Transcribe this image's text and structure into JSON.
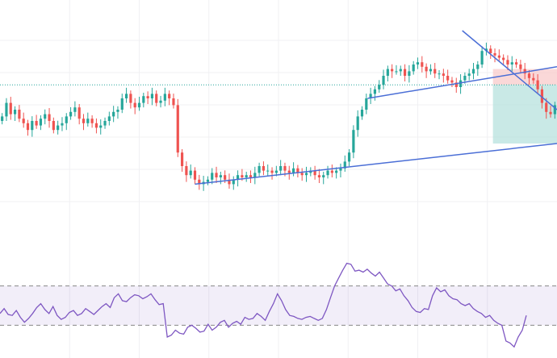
{
  "chart_data": [
    {
      "type": "candlestick",
      "title": "",
      "xlabel": "",
      "ylabel": "",
      "ylim": [
        0,
        100
      ],
      "colors": {
        "up": "#26a69a",
        "down": "#ef5350",
        "trendline": "#4a6ed6",
        "price_line": "#26a69a",
        "profit_zone": "#b2dfdb",
        "stop_zone": "#f8c8c8",
        "grid": "#f0f0f3"
      },
      "reference_price": 66,
      "close_price_series": [
        52,
        58,
        53,
        55,
        51,
        49,
        46,
        50,
        48,
        51,
        53,
        50,
        46,
        48,
        49,
        52,
        54,
        56,
        51,
        49,
        51,
        49,
        47,
        48,
        50,
        52,
        54,
        55,
        60,
        62,
        58,
        56,
        58,
        61,
        60,
        62,
        58,
        59,
        62,
        60,
        57,
        36,
        30,
        26,
        28,
        24,
        22,
        23,
        24,
        27,
        25,
        26,
        24,
        22,
        24,
        26,
        25,
        26,
        25,
        27,
        30,
        28,
        28,
        27,
        28,
        30,
        28,
        27,
        29,
        27,
        26,
        27,
        28,
        26,
        25,
        26,
        28,
        27,
        28,
        29,
        32,
        36,
        46,
        52,
        55,
        60,
        62,
        64,
        66,
        70,
        73,
        72,
        72,
        73,
        70,
        72,
        75,
        76,
        74,
        72,
        73,
        71,
        71,
        70,
        68,
        67,
        65,
        68,
        70,
        71,
        73,
        75,
        81,
        82,
        80,
        79,
        78,
        77,
        75,
        76,
        75,
        73,
        71,
        69,
        68,
        64,
        58,
        54,
        53,
        57
      ],
      "trendlines": [
        {
          "name": "lower-support",
          "start": [
            35,
            22
          ],
          "end": [
            100,
            40
          ]
        },
        {
          "name": "middle-support",
          "start": [
            66,
            60
          ],
          "end": [
            100,
            74
          ]
        },
        {
          "name": "resistance",
          "start": [
            83,
            90
          ],
          "end": [
            100,
            55
          ]
        }
      ],
      "position": {
        "entry": 66,
        "target": 40,
        "stop": 73
      }
    },
    {
      "type": "line",
      "title": "",
      "ylim": [
        0,
        100
      ],
      "upper_band": 70,
      "lower_band": 30,
      "band_color": "#7e57c2",
      "line_color": "#7e57c2",
      "values": [
        42,
        47,
        41,
        40,
        45,
        38,
        33,
        37,
        42,
        48,
        52,
        46,
        42,
        49,
        40,
        36,
        38,
        43,
        45,
        40,
        42,
        47,
        44,
        41,
        45,
        49,
        52,
        48,
        58,
        62,
        55,
        54,
        58,
        61,
        60,
        57,
        59,
        62,
        56,
        51,
        52,
        18,
        20,
        25,
        22,
        21,
        28,
        30,
        27,
        23,
        24,
        31,
        25,
        28,
        33,
        35,
        28,
        32,
        34,
        31,
        38,
        36,
        37,
        42,
        39,
        35,
        44,
        52,
        62,
        55,
        46,
        40,
        39,
        37,
        36,
        38,
        39,
        37,
        35,
        37,
        46,
        58,
        70,
        78,
        86,
        93,
        92,
        85,
        86,
        84,
        87,
        83,
        80,
        84,
        78,
        72,
        70,
        65,
        67,
        60,
        55,
        48,
        44,
        43,
        47,
        46,
        60,
        68,
        64,
        66,
        60,
        57,
        56,
        52,
        50,
        52,
        47,
        44,
        42,
        38,
        40,
        35,
        32,
        30,
        14,
        12,
        8,
        18,
        25,
        40
      ]
    }
  ]
}
